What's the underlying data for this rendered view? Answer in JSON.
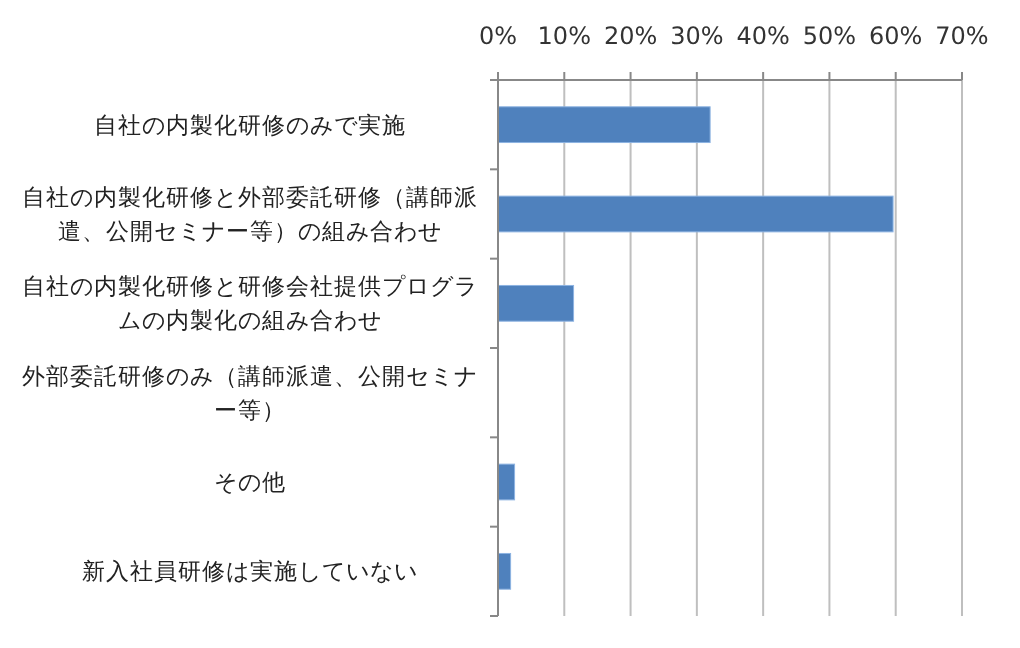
{
  "chart_data": {
    "type": "bar",
    "orientation": "horizontal",
    "categories": [
      "自社の内製化研修のみで実施",
      "自社の内製化研修と外部委託研修（講師派遣、公開セミナー等）の組み合わせ",
      "自社の内製化研修と研修会社提供プログラムの内製化の組み合わせ",
      "外部委託研修のみ（講師派遣、公開セミナー等）",
      "その他",
      "新入社員研修は実施していない"
    ],
    "values": [
      32.0,
      59.6,
      11.4,
      0,
      2.5,
      1.9
    ],
    "color": "#4f81bd",
    "xlim": [
      0,
      70
    ],
    "xticks": [
      {
        "value": 0,
        "label": "0%"
      },
      {
        "value": 10,
        "label": "10%"
      },
      {
        "value": 20,
        "label": "20%"
      },
      {
        "value": 30,
        "label": "30%"
      },
      {
        "value": 40,
        "label": "40%"
      },
      {
        "value": 50,
        "label": "50%"
      },
      {
        "value": 60,
        "label": "60%"
      },
      {
        "value": 70,
        "label": "70%"
      }
    ],
    "grid": "x"
  }
}
